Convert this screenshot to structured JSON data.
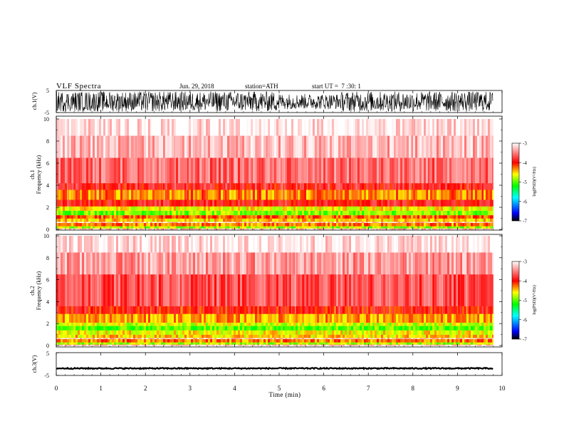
{
  "header": {
    "title": "VLF Spectra",
    "date": "Jun. 29, 2018",
    "station": "station=ATH",
    "start": "start UT =  7 :30: 1"
  },
  "chart_data": [
    {
      "type": "line",
      "panel": "ch1-waveform",
      "ylabel": "ch.1(V)",
      "ylim": [
        -5,
        5
      ],
      "yticks": [
        "5",
        "-5"
      ],
      "xlim": [
        0,
        10
      ],
      "data_end_min": 9.8,
      "signal": "dense noise, amplitude ≈ ±5 V, slightly lower 5–6.4 min"
    },
    {
      "type": "heatmap",
      "panel": "ch1-spectrogram",
      "ylabel": "ch.1\nFrequency (kHz)",
      "ylim": [
        0,
        10
      ],
      "yticks": [
        "0",
        "2",
        "4",
        "6",
        "8",
        "10"
      ],
      "xlim": [
        0,
        10
      ],
      "data_end_min": 9.8,
      "bands": [
        {
          "f_lo": 0.0,
          "f_hi": 0.1,
          "level": -3.3
        },
        {
          "f_lo": 0.1,
          "f_hi": 0.3,
          "level": -4.8
        },
        {
          "f_lo": 0.3,
          "f_hi": 0.6,
          "level": -4.3
        },
        {
          "f_lo": 0.6,
          "f_hi": 0.7,
          "level": -3.2
        },
        {
          "f_lo": 0.7,
          "f_hi": 1.0,
          "level": -4.5
        },
        {
          "f_lo": 1.0,
          "f_hi": 1.3,
          "level": -4.2
        },
        {
          "f_lo": 1.3,
          "f_hi": 1.7,
          "level": -4.9
        },
        {
          "f_lo": 1.7,
          "f_hi": 2.1,
          "level": -4.6
        },
        {
          "f_lo": 2.1,
          "f_hi": 2.7,
          "level": -3.9
        },
        {
          "f_lo": 2.7,
          "f_hi": 3.6,
          "level": -4.3
        },
        {
          "f_lo": 3.6,
          "f_hi": 4.2,
          "level": -3.9
        },
        {
          "f_lo": 4.2,
          "f_hi": 6.5,
          "level": -3.6
        },
        {
          "f_lo": 6.5,
          "f_hi": 8.5,
          "level": -3.3
        },
        {
          "f_lo": 8.5,
          "f_hi": 10.0,
          "level": -3.1
        }
      ]
    },
    {
      "type": "heatmap",
      "panel": "ch2-spectrogram",
      "ylabel": "ch.2\nFrequency (kHz)",
      "ylim": [
        0,
        10
      ],
      "yticks": [
        "0",
        "2",
        "4",
        "6",
        "8",
        "10"
      ],
      "xlim": [
        0,
        10
      ],
      "data_end_min": 9.8,
      "bands": [
        {
          "f_lo": 0.0,
          "f_hi": 0.1,
          "level": -3.3
        },
        {
          "f_lo": 0.1,
          "f_hi": 0.3,
          "level": -4.8
        },
        {
          "f_lo": 0.3,
          "f_hi": 0.6,
          "level": -4.3
        },
        {
          "f_lo": 0.6,
          "f_hi": 0.7,
          "level": -3.2
        },
        {
          "f_lo": 0.7,
          "f_hi": 1.0,
          "level": -4.5
        },
        {
          "f_lo": 1.0,
          "f_hi": 1.4,
          "level": -4.6
        },
        {
          "f_lo": 1.4,
          "f_hi": 1.8,
          "level": -5.0
        },
        {
          "f_lo": 1.8,
          "f_hi": 2.1,
          "level": -4.7
        },
        {
          "f_lo": 2.1,
          "f_hi": 2.9,
          "level": -4.4
        },
        {
          "f_lo": 2.9,
          "f_hi": 3.6,
          "level": -4.0
        },
        {
          "f_lo": 3.6,
          "f_hi": 6.5,
          "level": -3.7
        },
        {
          "f_lo": 6.5,
          "f_hi": 8.5,
          "level": -3.4
        },
        {
          "f_lo": 8.5,
          "f_hi": 10.0,
          "level": -3.1
        }
      ]
    },
    {
      "type": "line",
      "panel": "ch3-waveform",
      "ylabel": "ch.3(V)",
      "ylim": [
        -5,
        5
      ],
      "yticks": [
        "5",
        "-5"
      ],
      "xlim": [
        0,
        10
      ],
      "data_end_min": 9.8,
      "signal": "nearly flat at ≈ -2 V",
      "xlabel": "Time (min)",
      "xticks": [
        "0",
        "1",
        "2",
        "3",
        "4",
        "5",
        "6",
        "7",
        "8",
        "9",
        "10"
      ]
    }
  ],
  "colorbar": {
    "label": "log(PSD)(V²/Hz)",
    "range": [
      -7,
      -3
    ],
    "ticks": [
      "-3",
      "-4",
      "-5",
      "-6",
      "-7"
    ],
    "colors": [
      "#000000",
      "#0000ff",
      "#00ffff",
      "#00ff00",
      "#ffff00",
      "#ff0000",
      "#ffffff"
    ]
  }
}
